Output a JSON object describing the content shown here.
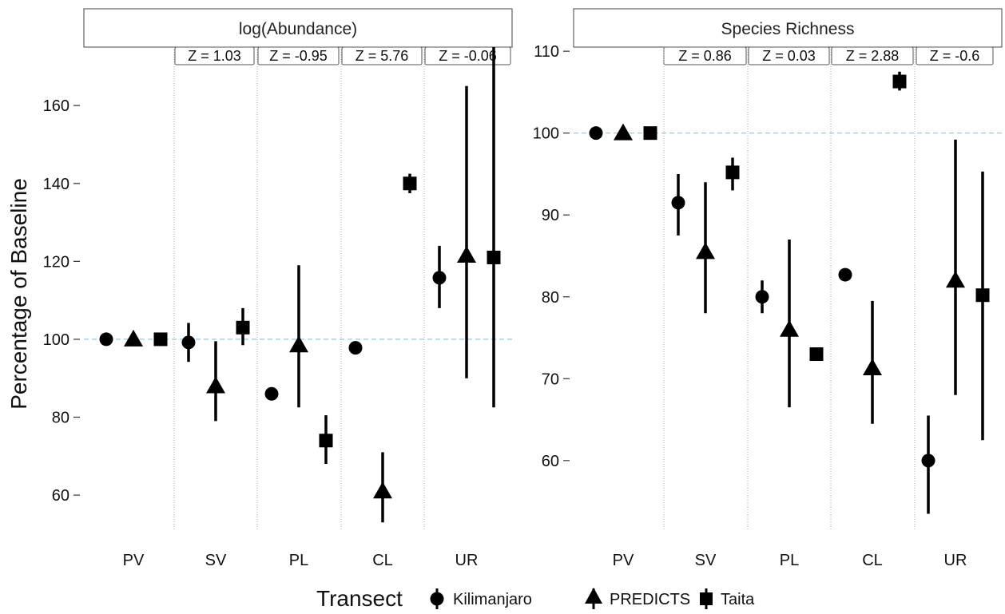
{
  "ylabel": "Percentage of Baseline",
  "legend": {
    "title": "Transect",
    "items": [
      {
        "label": "Kilimanjaro",
        "shape": "circle"
      },
      {
        "label": "PREDICTS",
        "shape": "triangle"
      },
      {
        "label": "Taita",
        "shape": "square"
      }
    ]
  },
  "colors": {
    "marks": "#000000",
    "reference": "#a6d1e8",
    "separator": "#aaaaaa"
  },
  "chart_data": [
    {
      "type": "scatter",
      "title": "log(Abundance)",
      "categories": [
        "PV",
        "SV",
        "PL",
        "CL",
        "UR"
      ],
      "ylim": [
        51,
        175
      ],
      "yticks": [
        60,
        80,
        100,
        120,
        140,
        160
      ],
      "reference_line": 100,
      "z_labels": [
        "Z =  1.03",
        "Z =  -0.95",
        "Z =  5.76",
        "Z =  -0.06"
      ],
      "series": [
        {
          "name": "Kilimanjaro",
          "shape": "circle",
          "values": [
            100,
            99.2,
            86,
            97.8,
            115.8
          ],
          "lower": [
            null,
            94.2,
            null,
            null,
            108
          ],
          "upper": [
            null,
            104.2,
            null,
            null,
            124
          ]
        },
        {
          "name": "PREDICTS",
          "shape": "triangle",
          "values": [
            100,
            88,
            98.5,
            61,
            121.5
          ],
          "lower": [
            null,
            79,
            82.5,
            53,
            90
          ],
          "upper": [
            null,
            99.5,
            119,
            71,
            165
          ]
        },
        {
          "name": "Taita",
          "shape": "square",
          "values": [
            100,
            103,
            74,
            140,
            121
          ],
          "lower": [
            null,
            98.5,
            68,
            137.5,
            82.5
          ],
          "upper": [
            null,
            108,
            80.5,
            142.5,
            175
          ]
        }
      ]
    },
    {
      "type": "scatter",
      "title": "Species Richness",
      "categories": [
        "PV",
        "SV",
        "PL",
        "CL",
        "UR"
      ],
      "ylim": [
        51.5,
        110.5
      ],
      "yticks": [
        60,
        70,
        80,
        90,
        100,
        110
      ],
      "reference_line": 100,
      "z_labels": [
        "Z =  0.86",
        "Z =  0.03",
        "Z =  2.88",
        "Z =  -0.6"
      ],
      "series": [
        {
          "name": "Kilimanjaro",
          "shape": "circle",
          "values": [
            100,
            91.5,
            80,
            82.7,
            60
          ],
          "lower": [
            null,
            87.5,
            78,
            null,
            53.5
          ],
          "upper": [
            null,
            95,
            82,
            null,
            65.5
          ]
        },
        {
          "name": "PREDICTS",
          "shape": "triangle",
          "values": [
            100,
            85.5,
            76,
            71.3,
            82
          ],
          "lower": [
            null,
            78,
            66.5,
            64.5,
            68
          ],
          "upper": [
            null,
            94,
            87,
            79.5,
            99.2
          ]
        },
        {
          "name": "Taita",
          "shape": "square",
          "values": [
            100,
            95.2,
            73,
            106.3,
            80.2
          ],
          "lower": [
            null,
            93,
            null,
            105.2,
            62.5
          ],
          "upper": [
            null,
            97,
            null,
            107.5,
            95.3
          ]
        }
      ]
    }
  ]
}
